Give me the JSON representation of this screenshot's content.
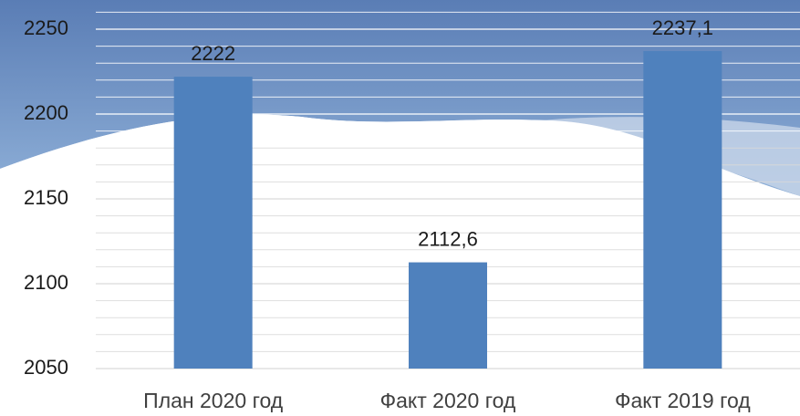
{
  "chart_data": {
    "type": "bar",
    "categories": [
      "План 2020 год",
      "Факт 2020 год",
      "Факт 2019 год"
    ],
    "values": [
      2222,
      2112.6,
      2237.1
    ],
    "value_labels": [
      "2222",
      "2112,6",
      "2237,1"
    ],
    "color": "#4f81bd",
    "ylim": [
      2050,
      2260
    ],
    "yticks": [
      2050,
      2100,
      2150,
      2200,
      2250
    ],
    "yticks_minor": [
      2060,
      2070,
      2080,
      2090,
      2110,
      2120,
      2130,
      2140,
      2160,
      2170,
      2180,
      2190,
      2210,
      2220,
      2230,
      2240,
      2260
    ],
    "grid": true
  }
}
